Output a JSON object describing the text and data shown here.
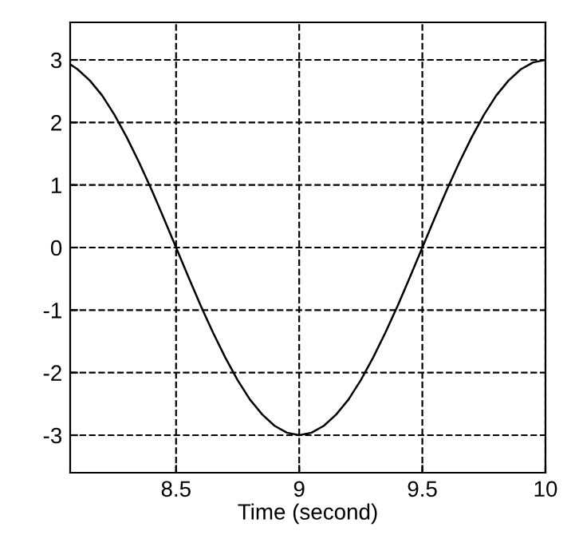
{
  "chart_data": {
    "type": "line",
    "xlabel": "Time (second)",
    "x": [
      8.07,
      8.1,
      8.15,
      8.2,
      8.25,
      8.3,
      8.35,
      8.4,
      8.45,
      8.5,
      8.55,
      8.6,
      8.65,
      8.7,
      8.75,
      8.8,
      8.85,
      8.9,
      8.95,
      9.0,
      9.05,
      9.1,
      9.15,
      9.2,
      9.25,
      9.3,
      9.35,
      9.4,
      9.45,
      9.5,
      9.55,
      9.6,
      9.65,
      9.7,
      9.75,
      9.8,
      9.85,
      9.9,
      9.95,
      10.0
    ],
    "series": [
      {
        "color": "#000000",
        "values": [
          2.93,
          2.85,
          2.67,
          2.43,
          2.12,
          1.76,
          1.36,
          0.93,
          0.47,
          0,
          -0.47,
          -0.93,
          -1.36,
          -1.76,
          -2.12,
          -2.43,
          -2.67,
          -2.85,
          -2.96,
          -3.0,
          -2.96,
          -2.85,
          -2.67,
          -2.43,
          -2.12,
          -1.76,
          -1.36,
          -0.93,
          -0.47,
          0,
          0.47,
          0.93,
          1.36,
          1.76,
          2.12,
          2.43,
          2.67,
          2.85,
          2.96,
          3.0
        ]
      }
    ],
    "xlim": [
      8.07,
      10
    ],
    "ylim": [
      -3.6,
      3.6
    ],
    "xticks": [
      8.5,
      9,
      9.5,
      10
    ],
    "yticks": [
      -3,
      -2,
      -1,
      0,
      1,
      2,
      3
    ],
    "grid": true,
    "line_style": "solid",
    "marker": "none"
  }
}
